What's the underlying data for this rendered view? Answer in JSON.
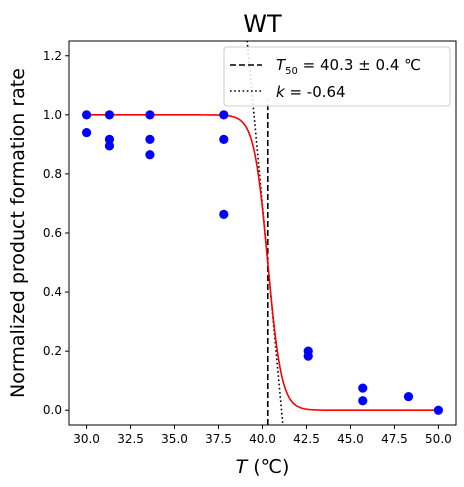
{
  "chart_data": {
    "type": "scatter",
    "title": "WT",
    "xlabel_var": "T",
    "xlabel_unit": " (℃)",
    "ylabel": "Normalized product formation rate",
    "xlim": [
      29.0,
      51.0
    ],
    "ylim": [
      -0.05,
      1.25
    ],
    "xticks": [
      "30.0",
      "32.5",
      "35.0",
      "37.5",
      "40.0",
      "42.5",
      "45.0",
      "47.5",
      "50.0"
    ],
    "xtick_values": [
      30.0,
      32.5,
      35.0,
      37.5,
      40.0,
      42.5,
      45.0,
      47.5,
      50.0
    ],
    "yticks": [
      "0.0",
      "0.2",
      "0.4",
      "0.6",
      "0.8",
      "1.0",
      "1.2"
    ],
    "ytick_values": [
      0.0,
      0.2,
      0.4,
      0.6,
      0.8,
      1.0,
      1.2
    ],
    "grid": false,
    "legend_position": "top-right",
    "colors": {
      "points": "#0000ff",
      "fit": "#ff0000",
      "t50_line": "#000000",
      "slope_line": "#000000"
    },
    "points": [
      {
        "x": 30.0,
        "y": 1.0
      },
      {
        "x": 30.0,
        "y": 0.94
      },
      {
        "x": 31.3,
        "y": 1.0
      },
      {
        "x": 31.3,
        "y": 0.917
      },
      {
        "x": 31.3,
        "y": 0.895
      },
      {
        "x": 33.6,
        "y": 1.0
      },
      {
        "x": 33.6,
        "y": 0.917
      },
      {
        "x": 33.6,
        "y": 0.865
      },
      {
        "x": 37.8,
        "y": 1.0
      },
      {
        "x": 37.8,
        "y": 0.917
      },
      {
        "x": 37.8,
        "y": 0.663
      },
      {
        "x": 42.6,
        "y": 0.2
      },
      {
        "x": 42.6,
        "y": 0.183
      },
      {
        "x": 45.7,
        "y": 0.075
      },
      {
        "x": 45.7,
        "y": 0.032
      },
      {
        "x": 48.3,
        "y": 0.046
      },
      {
        "x": 50.0,
        "y": 0.0
      }
    ],
    "fit": {
      "t50": 40.3,
      "k": -0.64
    },
    "legend": [
      {
        "prefix": "T",
        "sub": "50",
        "text": " = 40.3 ± 0.4 ℃",
        "style": "dashed"
      },
      {
        "prefix": "k",
        "sub": "",
        "text": " = -0.64",
        "style": "dotted"
      }
    ]
  }
}
